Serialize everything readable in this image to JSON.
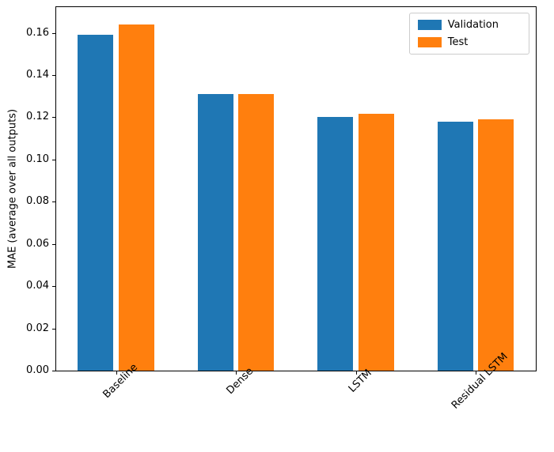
{
  "chart_data": {
    "type": "bar",
    "title": "",
    "xlabel": "",
    "ylabel": "MAE (average over all outputs)",
    "categories": [
      "Baseline",
      "Dense",
      "LSTM",
      "Residual LSTM"
    ],
    "series": [
      {
        "name": "Validation",
        "color": "#1f77b4",
        "values": [
          0.159,
          0.131,
          0.12,
          0.118
        ]
      },
      {
        "name": "Test",
        "color": "#ff7f0e",
        "values": [
          0.164,
          0.131,
          0.1215,
          0.119
        ]
      }
    ],
    "ylim": [
      0,
      0.1722
    ],
    "yticks": [
      0.0,
      0.02,
      0.04,
      0.06,
      0.08,
      0.1,
      0.12,
      0.14,
      0.16
    ],
    "ytick_decimals": 2,
    "legend_position": "upper right",
    "grid": false,
    "bar_width_fraction": 0.3,
    "bar_offset_fraction": 0.17,
    "axis_color": "#000000",
    "background_color": "#ffffff"
  }
}
